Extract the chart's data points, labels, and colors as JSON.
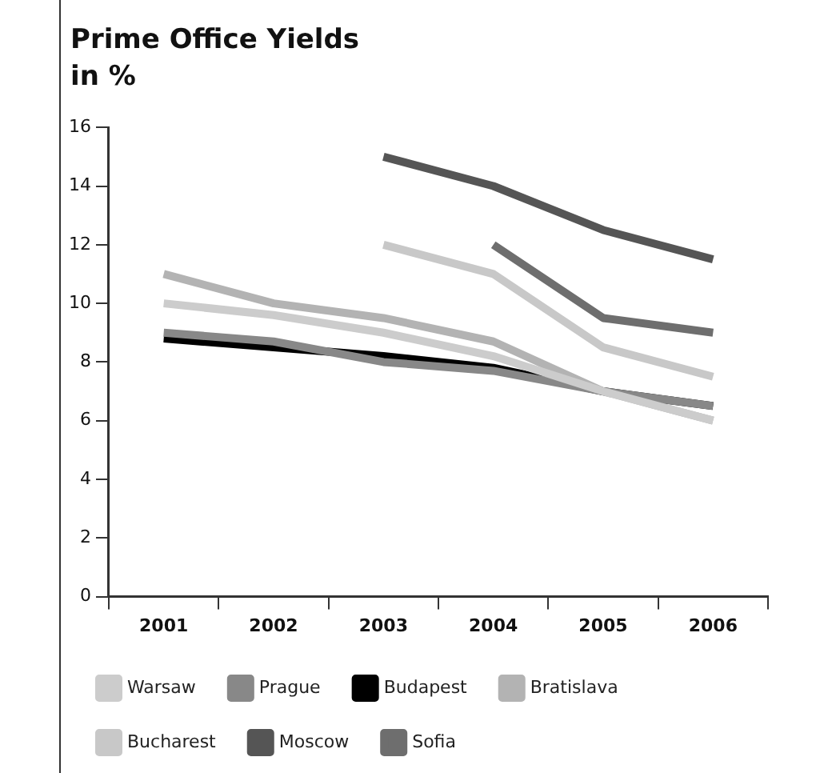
{
  "chart_data": {
    "type": "line",
    "title": "Prime Office Yields",
    "subtitle": "in %",
    "categories": [
      "2001",
      "2002",
      "2003",
      "2004",
      "2005",
      "2006"
    ],
    "series": [
      {
        "name": "Warsaw",
        "color": "#cccccc",
        "values": [
          10,
          9.6,
          9,
          8.2,
          7,
          6
        ]
      },
      {
        "name": "Prague",
        "color": "#888888",
        "values": [
          9,
          8.7,
          8,
          7.7,
          7,
          6.5
        ]
      },
      {
        "name": "Budapest",
        "color": "#000000",
        "values": [
          8.8,
          8.5,
          8.2,
          7.8,
          7,
          6.5
        ]
      },
      {
        "name": "Bratislava",
        "color": "#b3b3b3",
        "values": [
          11,
          10,
          9.5,
          8.7,
          7,
          6
        ]
      },
      {
        "name": "Bucharest",
        "color": "#c8c8c8",
        "values": [
          null,
          null,
          12,
          11,
          8.5,
          7.5
        ]
      },
      {
        "name": "Moscow",
        "color": "#555555",
        "values": [
          null,
          null,
          15,
          14,
          12.5,
          11.5
        ]
      },
      {
        "name": "Sofia",
        "color": "#6e6e6e",
        "values": [
          null,
          null,
          null,
          12,
          9.5,
          9
        ]
      }
    ],
    "ylim": [
      0,
      16
    ],
    "yticks": [
      0,
      2,
      4,
      6,
      8,
      10,
      12,
      14,
      16
    ],
    "grid": false,
    "legend": "bottom",
    "marker": "none",
    "line_style": "solid"
  }
}
